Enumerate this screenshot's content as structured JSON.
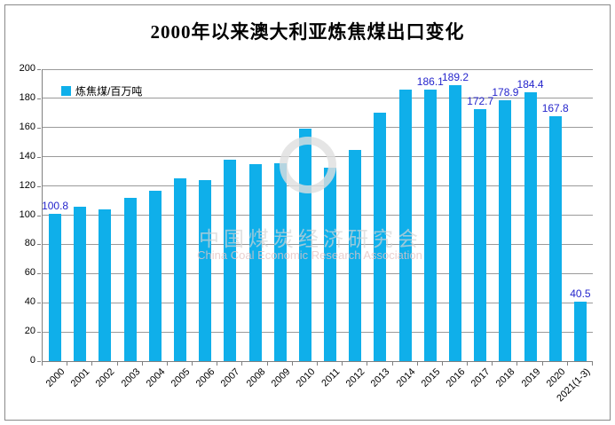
{
  "chart": {
    "title": "2000年以来澳大利亚炼焦煤出口变化",
    "legend": {
      "label": "炼焦煤/百万吨"
    },
    "watermark": {
      "line1": "中国煤炭经济研究会",
      "line2": "China Coal Economic Research Association"
    }
  },
  "chart_data": {
    "type": "bar",
    "title": "2000年以来澳大利亚炼焦煤出口变化",
    "series_name": "炼焦煤/百万吨",
    "categories": [
      "2000",
      "2001",
      "2002",
      "2003",
      "2004",
      "2005",
      "2006",
      "2007",
      "2008",
      "2009",
      "2010",
      "2011",
      "2012",
      "2013",
      "2014",
      "2015",
      "2016",
      "2017",
      "2018",
      "2019",
      "2020",
      "2021(1-3)"
    ],
    "values": [
      100.8,
      106,
      104,
      112,
      117,
      125,
      124,
      138,
      135,
      135.5,
      159,
      132.5,
      144.5,
      170,
      186,
      186.1,
      189.2,
      172.7,
      178.9,
      184.4,
      167.8,
      40.5
    ],
    "point_labels": [
      "100.8",
      "",
      "",
      "",
      "",
      "",
      "",
      "",
      "",
      "",
      "",
      "",
      "",
      "",
      "",
      "186.1",
      "189.2",
      "172.7",
      "178.9",
      "184.4",
      "167.8",
      "40.5"
    ],
    "xlabel": "",
    "ylabel": "",
    "ylim": [
      0,
      200
    ],
    "y_tick_step": 20,
    "grid": true,
    "legend_position": "top-left-inside",
    "bar_color": "#0fafea",
    "value_label_color": "#2525cc",
    "grid_color": "#9a9a9a",
    "axis_color": "#808080"
  }
}
